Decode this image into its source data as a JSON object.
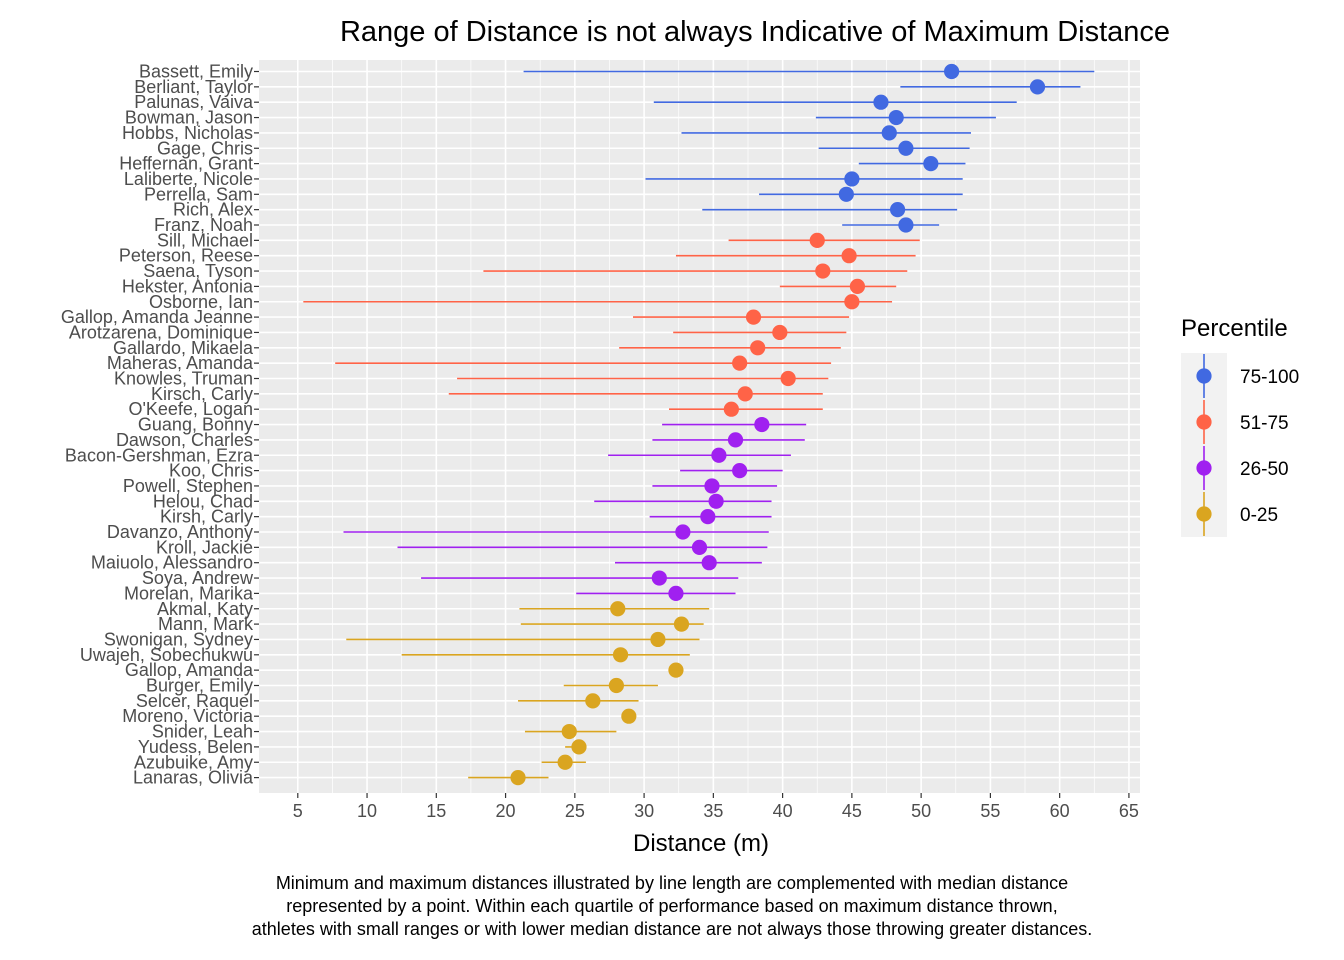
{
  "colors": {
    "panel_bg": "#EBEBEB",
    "grid_major": "#FFFFFF",
    "tick_text": "#4D4D4D",
    "p75_100": "#4169E1",
    "p51_75": "#FF6347",
    "p26_50": "#A020F0",
    "p0_25": "#DAA520"
  },
  "chart_data": {
    "type": "dot-range",
    "title": "Range of Distance is not always Indicative of Maximum Distance",
    "xlabel": "Distance (m)",
    "ylabel": "",
    "xlim": [
      2.2,
      65.8
    ],
    "x_ticks": [
      5,
      10,
      15,
      20,
      25,
      30,
      35,
      40,
      45,
      50,
      55,
      60,
      65
    ],
    "grid": true,
    "legend": {
      "title": "Percentile",
      "position": "right",
      "entries": [
        {
          "label": "75-100",
          "color": "#4169E1"
        },
        {
          "label": "51-75",
          "color": "#FF6347"
        },
        {
          "label": "26-50",
          "color": "#A020F0"
        },
        {
          "label": "0-25",
          "color": "#DAA520"
        }
      ]
    },
    "athletes": [
      {
        "name": "Bassett, Emily",
        "min": 21.3,
        "max": 62.5,
        "median": 52.2,
        "group": "75-100"
      },
      {
        "name": "Berliant, Taylor",
        "min": 48.5,
        "max": 61.5,
        "median": 58.4,
        "group": "75-100"
      },
      {
        "name": "Palunas, Vaiva",
        "min": 30.7,
        "max": 56.9,
        "median": 47.1,
        "group": "75-100"
      },
      {
        "name": "Bowman, Jason",
        "min": 42.4,
        "max": 55.4,
        "median": 48.2,
        "group": "75-100"
      },
      {
        "name": "Hobbs, Nicholas",
        "min": 32.7,
        "max": 53.6,
        "median": 47.7,
        "group": "75-100"
      },
      {
        "name": "Gage, Chris",
        "min": 42.6,
        "max": 53.5,
        "median": 48.9,
        "group": "75-100"
      },
      {
        "name": "Heffernan, Grant",
        "min": 45.5,
        "max": 53.2,
        "median": 50.7,
        "group": "75-100"
      },
      {
        "name": "Laliberte, Nicole",
        "min": 30.1,
        "max": 53.0,
        "median": 45.0,
        "group": "75-100"
      },
      {
        "name": "Perrella, Sam",
        "min": 38.3,
        "max": 53.0,
        "median": 44.6,
        "group": "75-100"
      },
      {
        "name": "Rich, Alex",
        "min": 34.2,
        "max": 52.6,
        "median": 48.3,
        "group": "75-100"
      },
      {
        "name": "Franz, Noah",
        "min": 44.3,
        "max": 51.3,
        "median": 48.9,
        "group": "75-100"
      },
      {
        "name": "Sill, Michael",
        "min": 36.1,
        "max": 49.9,
        "median": 42.5,
        "group": "51-75"
      },
      {
        "name": "Peterson, Reese",
        "min": 32.3,
        "max": 49.6,
        "median": 44.8,
        "group": "51-75"
      },
      {
        "name": "Saena, Tyson",
        "min": 18.4,
        "max": 49.0,
        "median": 42.9,
        "group": "51-75"
      },
      {
        "name": "Hekster, Antonia",
        "min": 39.8,
        "max": 48.2,
        "median": 45.4,
        "group": "51-75"
      },
      {
        "name": "Osborne, Ian",
        "min": 5.4,
        "max": 47.9,
        "median": 45.0,
        "group": "51-75"
      },
      {
        "name": "Gallop, Amanda Jeanne",
        "min": 29.2,
        "max": 44.8,
        "median": 37.9,
        "group": "51-75"
      },
      {
        "name": "Arotzarena, Dominique",
        "min": 32.1,
        "max": 44.6,
        "median": 39.8,
        "group": "51-75"
      },
      {
        "name": "Gallardo, Mikaela",
        "min": 28.2,
        "max": 44.2,
        "median": 38.2,
        "group": "51-75"
      },
      {
        "name": "Maheras, Amanda",
        "min": 7.7,
        "max": 43.5,
        "median": 36.9,
        "group": "51-75"
      },
      {
        "name": "Knowles, Truman",
        "min": 16.5,
        "max": 43.3,
        "median": 40.4,
        "group": "51-75"
      },
      {
        "name": "Kirsch, Carly",
        "min": 15.9,
        "max": 42.9,
        "median": 37.3,
        "group": "51-75"
      },
      {
        "name": "O'Keefe, Logan",
        "min": 31.8,
        "max": 42.9,
        "median": 36.3,
        "group": "51-75"
      },
      {
        "name": "Guang, Bonny",
        "min": 31.3,
        "max": 41.7,
        "median": 38.5,
        "group": "26-50"
      },
      {
        "name": "Dawson, Charles",
        "min": 30.6,
        "max": 41.6,
        "median": 36.6,
        "group": "26-50"
      },
      {
        "name": "Bacon-Gershman, Ezra",
        "min": 27.4,
        "max": 40.6,
        "median": 35.4,
        "group": "26-50"
      },
      {
        "name": "Koo, Chris",
        "min": 32.6,
        "max": 40.0,
        "median": 36.9,
        "group": "26-50"
      },
      {
        "name": "Powell, Stephen",
        "min": 30.6,
        "max": 39.6,
        "median": 34.9,
        "group": "26-50"
      },
      {
        "name": "Helou, Chad",
        "min": 26.4,
        "max": 39.2,
        "median": 35.2,
        "group": "26-50"
      },
      {
        "name": "Kirsh, Carly",
        "min": 30.4,
        "max": 39.2,
        "median": 34.6,
        "group": "26-50"
      },
      {
        "name": "Davanzo, Anthony",
        "min": 8.3,
        "max": 39.0,
        "median": 32.8,
        "group": "26-50"
      },
      {
        "name": "Kroll, Jackie",
        "min": 12.2,
        "max": 38.9,
        "median": 34.0,
        "group": "26-50"
      },
      {
        "name": "Maiuolo, Alessandro",
        "min": 27.9,
        "max": 38.5,
        "median": 34.7,
        "group": "26-50"
      },
      {
        "name": "Soya, Andrew",
        "min": 13.9,
        "max": 36.8,
        "median": 31.1,
        "group": "26-50"
      },
      {
        "name": "Morelan, Marika",
        "min": 25.1,
        "max": 36.6,
        "median": 32.3,
        "group": "26-50"
      },
      {
        "name": "Akmal, Katy",
        "min": 21.0,
        "max": 34.7,
        "median": 28.1,
        "group": "0-25"
      },
      {
        "name": "Mann, Mark",
        "min": 21.1,
        "max": 34.3,
        "median": 32.7,
        "group": "0-25"
      },
      {
        "name": "Swonigan, Sydney",
        "min": 8.5,
        "max": 34.0,
        "median": 31.0,
        "group": "0-25"
      },
      {
        "name": "Uwajeh, Sobechukwu",
        "min": 12.5,
        "max": 33.3,
        "median": 28.3,
        "group": "0-25"
      },
      {
        "name": "Gallop, Amanda",
        "min": 32.3,
        "max": 32.3,
        "median": 32.3,
        "group": "0-25"
      },
      {
        "name": "Burger, Emily",
        "min": 24.2,
        "max": 31.0,
        "median": 28.0,
        "group": "0-25"
      },
      {
        "name": "Selcer, Raquel",
        "min": 20.9,
        "max": 29.6,
        "median": 26.3,
        "group": "0-25"
      },
      {
        "name": "Moreno, Victoria",
        "min": 28.9,
        "max": 28.9,
        "median": 28.9,
        "group": "0-25"
      },
      {
        "name": "Snider, Leah",
        "min": 21.4,
        "max": 28.0,
        "median": 24.6,
        "group": "0-25"
      },
      {
        "name": "Yudess, Belen",
        "min": 24.3,
        "max": 25.6,
        "median": 25.3,
        "group": "0-25"
      },
      {
        "name": "Azubuike, Amy",
        "min": 22.6,
        "max": 25.8,
        "median": 24.3,
        "group": "0-25"
      },
      {
        "name": "Lanaras, Olivia",
        "min": 17.3,
        "max": 23.1,
        "median": 20.9,
        "group": "0-25"
      }
    ]
  },
  "caption": {
    "line1": "Minimum and maximum distances illustrated by line length are complemented with median distance",
    "line2": "represented by a point. Within each quartile of performance based on maximum distance thrown,",
    "line3": "athletes with small ranges or with lower median distance are not always those throwing greater distances."
  }
}
